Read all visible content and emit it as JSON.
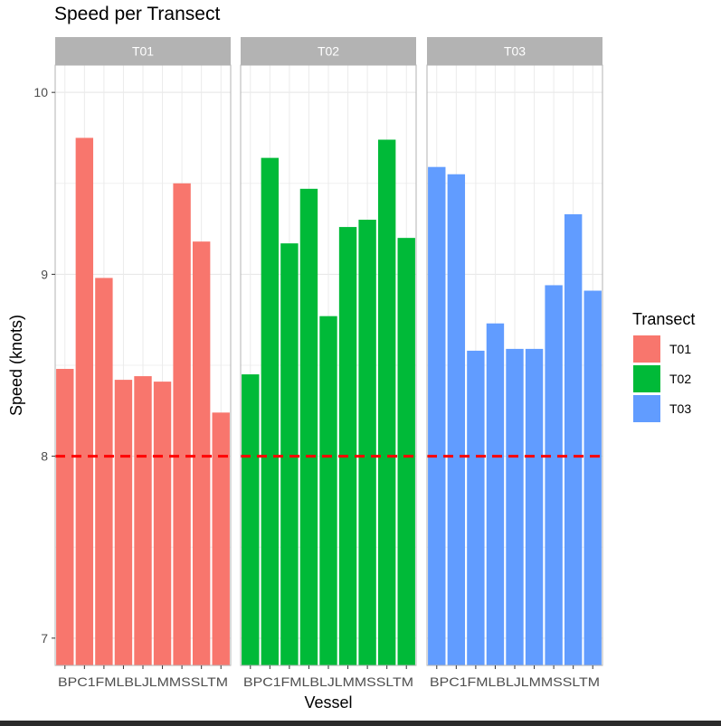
{
  "chart_data": {
    "type": "bar",
    "title": "Speed per Transect",
    "xlabel": "Vessel",
    "ylabel": "Speed (knots)",
    "ylim": [
      6.85,
      10.15
    ],
    "y_ticks": [
      7,
      8,
      9,
      10
    ],
    "grid": true,
    "facet_by": "Transect",
    "categories": [
      "BP",
      "C1",
      "FM",
      "LB",
      "LJ",
      "LM",
      "MS",
      "SL",
      "TM"
    ],
    "tick_labels_text": "BPC1FMLBLJLMMSSLTM",
    "reference_line": {
      "y": 8,
      "color": "#ff0000",
      "style": "dashed"
    },
    "legend": {
      "title": "Transect",
      "placement": "right"
    },
    "series": [
      {
        "name": "T01",
        "color": "#F8766D",
        "values": [
          8.48,
          9.75,
          8.98,
          8.42,
          8.44,
          8.41,
          9.5,
          9.18,
          8.24
        ]
      },
      {
        "name": "T02",
        "color": "#00BA38",
        "values": [
          8.45,
          9.64,
          9.17,
          9.47,
          8.77,
          9.26,
          9.3,
          9.74,
          9.2
        ]
      },
      {
        "name": "T03",
        "color": "#619CFF",
        "values": [
          9.59,
          9.55,
          8.58,
          8.73,
          8.59,
          8.59,
          8.94,
          9.33,
          8.91
        ]
      }
    ]
  }
}
